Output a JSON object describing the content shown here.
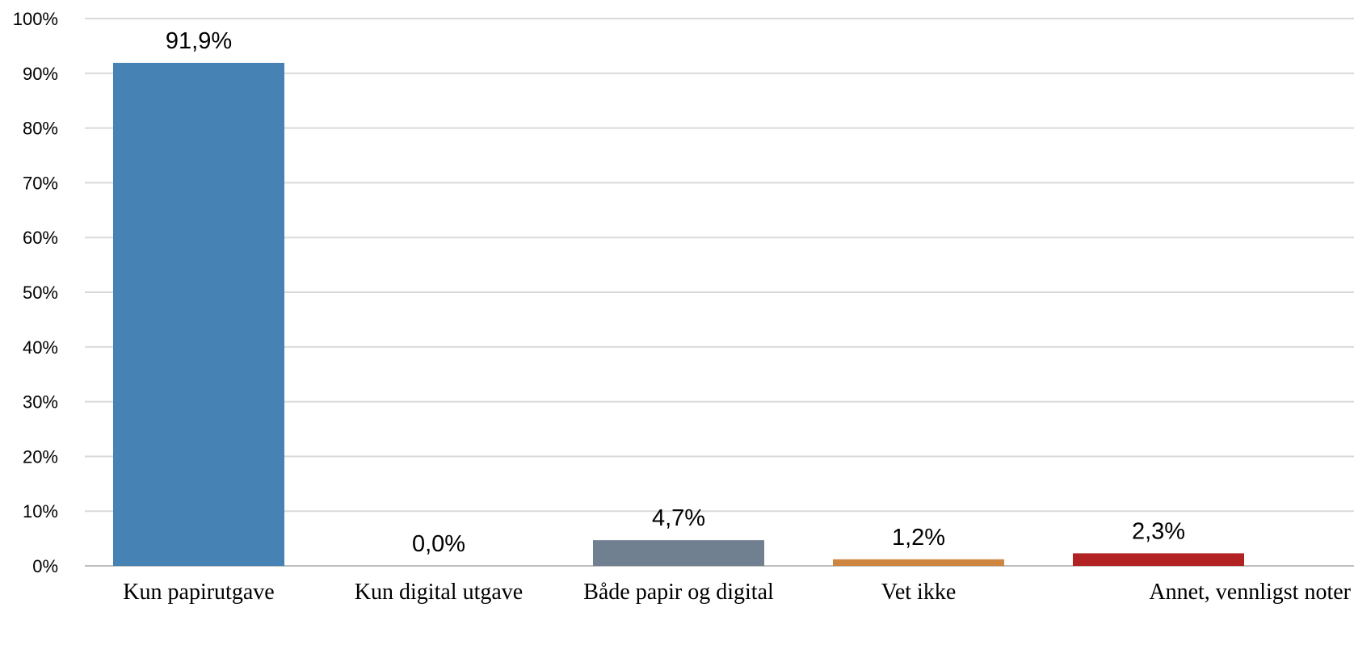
{
  "chart_data": {
    "type": "bar",
    "title": "",
    "xlabel": "",
    "ylabel": "",
    "categories": [
      "Kun papirutgave",
      "Kun digital utgave",
      "Både papir og digital",
      "Vet ikke",
      "Annet, vennligst noter"
    ],
    "values": [
      91.9,
      0.0,
      4.7,
      1.2,
      2.3
    ],
    "data_labels": [
      "91,9%",
      "0,0%",
      "4,7%",
      "1,2%",
      "2,3%"
    ],
    "colors": [
      "#4682b4",
      "#4682b4",
      "#708090",
      "#cd853f",
      "#b22222"
    ],
    "ylim": [
      0,
      100
    ],
    "y_ticks": [
      0,
      10,
      20,
      30,
      40,
      50,
      60,
      70,
      80,
      90,
      100
    ],
    "y_tick_labels": [
      "0%",
      "10%",
      "20%",
      "30%",
      "40%",
      "50%",
      "60%",
      "70%",
      "80%",
      "90%",
      "100%"
    ],
    "grid": true,
    "legend": "none"
  }
}
